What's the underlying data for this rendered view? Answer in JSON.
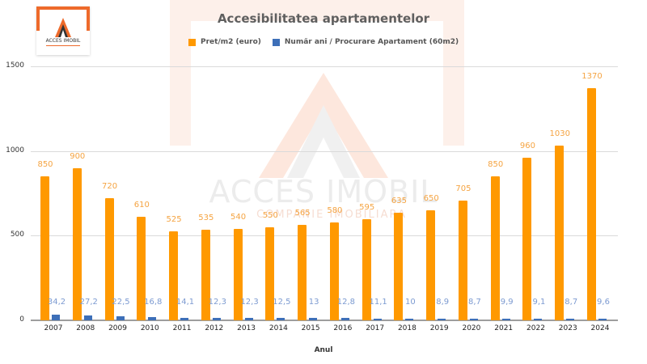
{
  "logo": {
    "name": "ACCES IMOBIL",
    "accent_color": "#ee6a2b"
  },
  "watermark": {
    "name": "ACCES IMOBIL",
    "subtitle": "COMPANIE IMOBILIARA"
  },
  "colors": {
    "series1": "#ff9900",
    "series2": "#3d6fb8",
    "series1_label": "#f5a442",
    "series2_label": "#7d9bd1"
  },
  "chart_data": {
    "type": "bar",
    "title": "Accesibilitatea apartamentelor",
    "xlabel": "Anul",
    "ylabel": "",
    "ylim": [
      0,
      1500
    ],
    "yticks": [
      0,
      500,
      1000,
      1500
    ],
    "grid": true,
    "legend_position": "top",
    "categories": [
      "2007",
      "2008",
      "2009",
      "2010",
      "2011",
      "2012",
      "2013",
      "2014",
      "2015",
      "2016",
      "2017",
      "2018",
      "2019",
      "2020",
      "2021",
      "2022",
      "2023",
      "2024"
    ],
    "series": [
      {
        "name": "Pret/m2 (euro)",
        "values": [
          850,
          900,
          720,
          610,
          525,
          535,
          540,
          550,
          565,
          580,
          595,
          635,
          650,
          705,
          850,
          960,
          1030,
          1370
        ],
        "labels": [
          "850",
          "900",
          "720",
          "610",
          "525",
          "535",
          "540",
          "550",
          "565",
          "580",
          "595",
          "635",
          "650",
          "705",
          "850",
          "960",
          "1030",
          "1370"
        ]
      },
      {
        "name": "Număr ani / Procurare Apartament (60m2)",
        "values": [
          34.2,
          27.2,
          22.5,
          16.8,
          14.1,
          12.3,
          12.3,
          12.5,
          13,
          12.8,
          11.1,
          10,
          8.9,
          8.7,
          9.9,
          9.1,
          8.7,
          9.6
        ],
        "labels": [
          "34,2",
          "27,2",
          "22,5",
          "16,8",
          "14,1",
          "12,3",
          "12,3",
          "12,5",
          "13",
          "12,8",
          "11,1",
          "10",
          "8,9",
          "8,7",
          "9,9",
          "9,1",
          "8,7",
          "9,6"
        ]
      }
    ]
  }
}
